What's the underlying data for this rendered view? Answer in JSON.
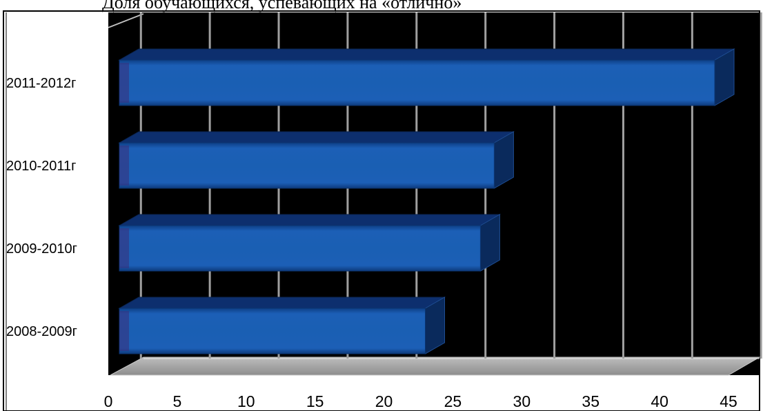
{
  "chart_data": {
    "type": "bar",
    "orientation": "horizontal",
    "title": "Доля обучающихся, успевающих на «отлично»",
    "xlabel": "",
    "ylabel": "",
    "categories": [
      "2008-2009г",
      "2009-2010г",
      "2010-2011г",
      "2011-2012г"
    ],
    "values": [
      23,
      27,
      28,
      44
    ],
    "xlim": [
      0,
      45
    ],
    "x_ticks": [
      "0",
      "5",
      "10",
      "15",
      "20",
      "25",
      "30",
      "35",
      "40",
      "45"
    ],
    "grid": true,
    "legend": "none",
    "style": "3d",
    "colors": {
      "bar_front": "#1a5eb0",
      "bar_top": "#0d2f6e",
      "bar_side": "#0a2a5c",
      "plot_background": "#000000",
      "floor": "#a8a8a8",
      "grid": "#a0a0a0"
    }
  }
}
